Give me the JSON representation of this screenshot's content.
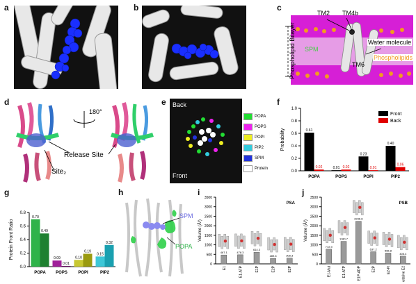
{
  "panels": {
    "a": {
      "label": "a"
    },
    "b": {
      "label": "b"
    },
    "c": {
      "label": "c",
      "tm2": "TM2",
      "tm4b": "TM4b",
      "tm6": "TM6",
      "spm": "SPM",
      "bilayer": "Phospholipid Bilayer",
      "water": "Water molecule",
      "phospholipids": "Phospholipids"
    },
    "d": {
      "label": "d",
      "rotation": "180°",
      "release": "Release Site",
      "site2": "Site₂"
    },
    "e": {
      "label": "e",
      "back": "Back",
      "front": "Front",
      "legend": [
        "POPA",
        "POPS",
        "POPI",
        "PIP2",
        "SPM",
        "Protein"
      ],
      "legend_colors": [
        "#22dd33",
        "#ee22ee",
        "#eeee22",
        "#33ccdd",
        "#2233dd",
        "#ffffff"
      ]
    },
    "f": {
      "label": "f"
    },
    "g": {
      "label": "g"
    },
    "h": {
      "label": "h",
      "spm": "SPM",
      "popa": "POPA"
    },
    "i": {
      "label": "i"
    },
    "j": {
      "label": "j"
    }
  },
  "chart_data": [
    {
      "id": "f",
      "type": "bar",
      "categories": [
        "POPA",
        "POPS",
        "POPI",
        "PIP2"
      ],
      "series": [
        {
          "name": "Front",
          "values": [
            0.61,
            0.01,
            0.23,
            0.4
          ],
          "labels": [
            "0.61",
            "0.01",
            "0.23",
            "0.40"
          ],
          "color": "#000000"
        },
        {
          "name": "Back",
          "values": [
            0.02,
            0.02,
            0.01,
            0.06
          ],
          "labels": [
            "0.02",
            "0.02",
            "0.01",
            "0.06"
          ],
          "color": "#e00000"
        }
      ],
      "ylabel": "Probability",
      "ylim": [
        0,
        1.0
      ],
      "yticks": [
        "0.0",
        "0.2",
        "0.4",
        "0.6",
        "0.8",
        "1.0"
      ],
      "legend": "top-right"
    },
    {
      "id": "g",
      "type": "bar",
      "categories": [
        "POPA",
        "POPS",
        "POPI",
        "PIP2"
      ],
      "series": [
        {
          "values": [
            0.7,
            0.09,
            0.1,
            0.15
          ],
          "labels": [
            "0.70",
            "0.09",
            "0.10",
            "0.15"
          ]
        },
        {
          "values": [
            0.49,
            0.01,
            0.19,
            0.32
          ],
          "labels": [
            "0.49",
            "0.01",
            "0.19",
            "0.32"
          ]
        }
      ],
      "colors1": [
        "#2fb34a",
        "#a0209a",
        "#c8c832",
        "#3ec7d7"
      ],
      "colors2": [
        "#1e8030",
        "#6a1066",
        "#9a9a10",
        "#1aa0b0"
      ],
      "ylabel": "Protein Front Ratio",
      "ylim": [
        0,
        0.8
      ],
      "yticks": [
        "0.0",
        "0.2",
        "0.4",
        "0.6",
        "0.8"
      ]
    },
    {
      "id": "i",
      "type": "bar",
      "title": "PSA",
      "categories": [
        "E1",
        "E1-ATP",
        "E1P",
        "E2P",
        "E2P"
      ],
      "values": [
        467.1,
        478.3,
        614.3,
        289.6,
        305.3
      ],
      "labels": [
        "467.1",
        "478.3",
        "614.3",
        "289.6",
        "305.3"
      ],
      "ylabel": "Volume (Å³)",
      "ylim": [
        0,
        3500
      ],
      "yticks": [
        "0",
        "500",
        "1000",
        "1500",
        "2000",
        "2500",
        "3000",
        "3500"
      ]
    },
    {
      "id": "j",
      "type": "bar",
      "title": "PSB",
      "categories": [
        "E1-Mut",
        "E1-ATP",
        "E1P-ADP",
        "E2P",
        "E2-Pi",
        "putative E2"
      ],
      "values": [
        772.9,
        1180.7,
        2236.8,
        637.2,
        566.8,
        405.4
      ],
      "labels": [
        "772.9",
        "1180.7",
        "2236.8",
        "637.2",
        "566.8",
        "405.4"
      ],
      "ylabel": "Volume (Å³)",
      "ylim": [
        0,
        3500
      ],
      "yticks": [
        "0",
        "500",
        "1000",
        "1500",
        "2000",
        "2500",
        "3000",
        "3500"
      ]
    }
  ]
}
